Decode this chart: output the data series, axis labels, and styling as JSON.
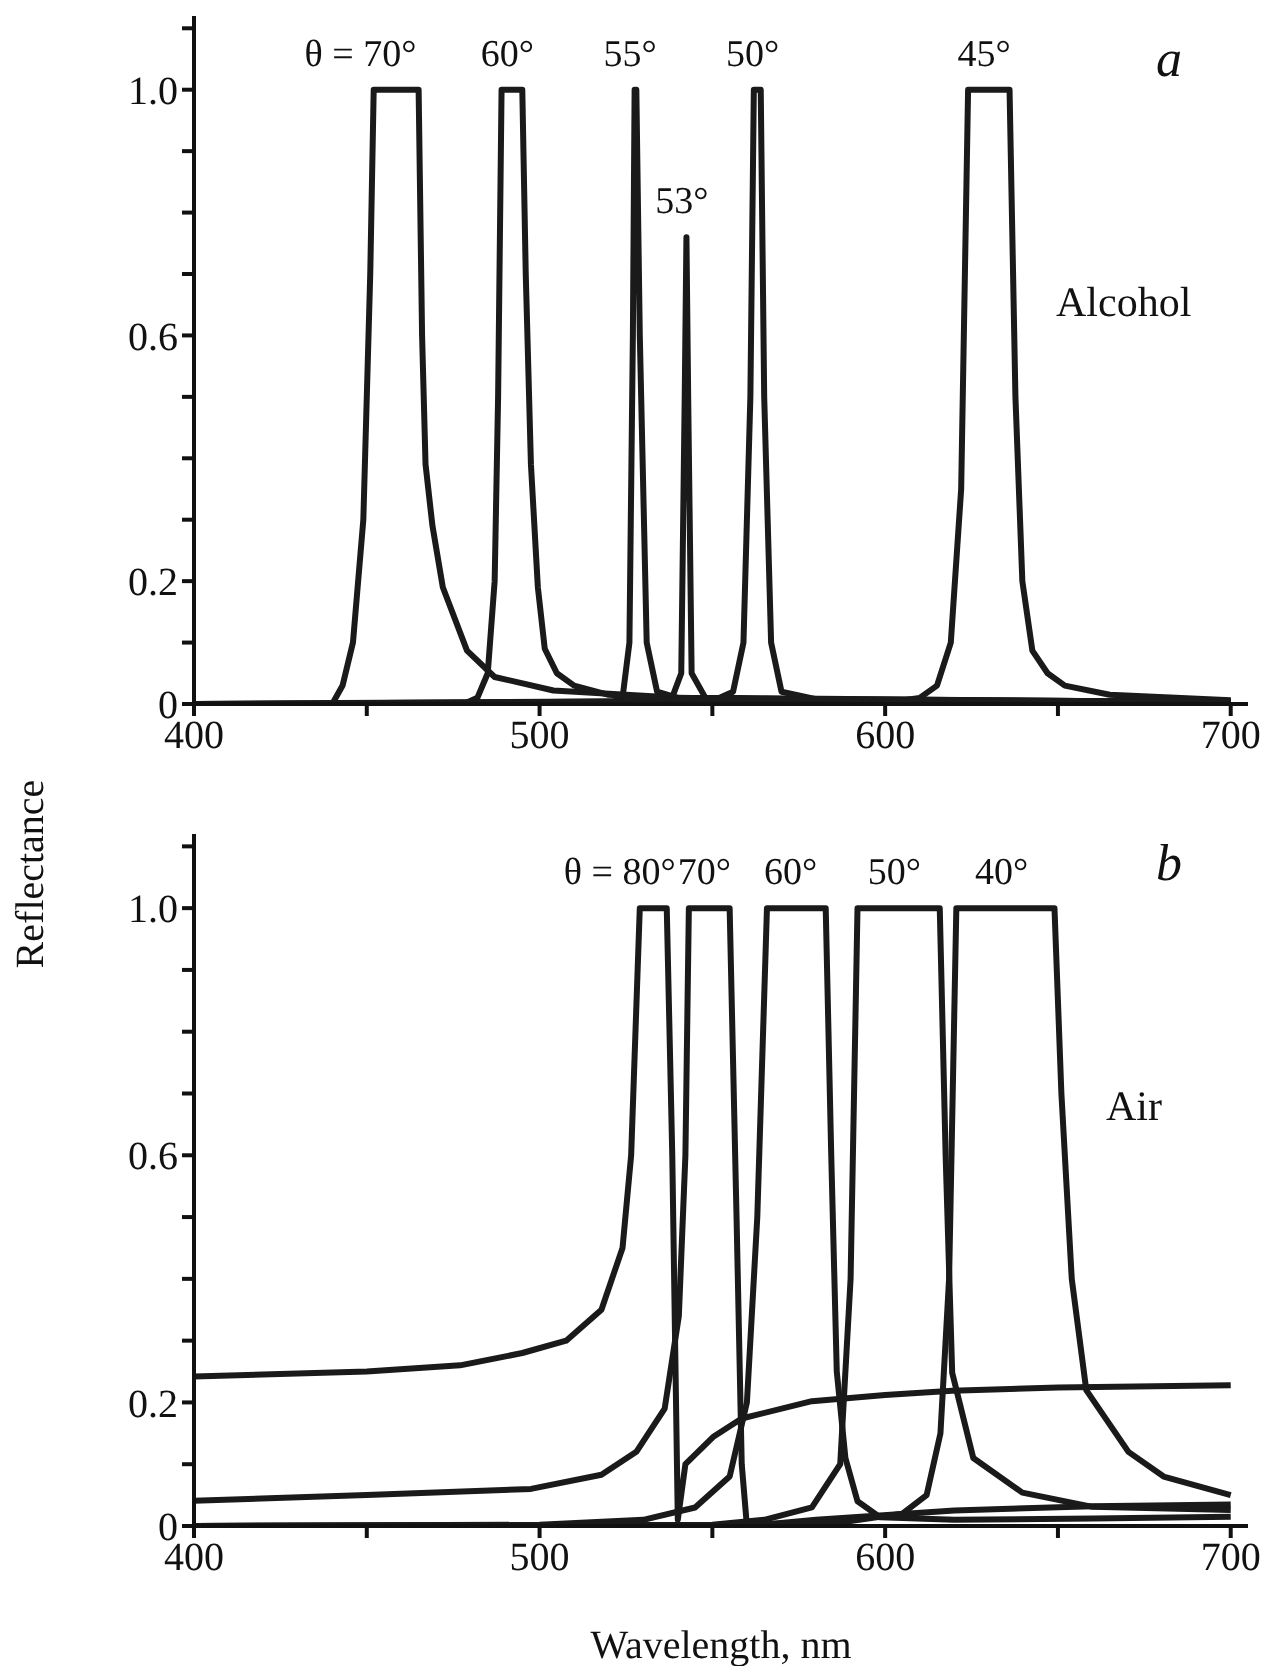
{
  "chart_data": [
    {
      "type": "line",
      "ylabel": "Reflectance",
      "xlim": [
        400,
        705
      ],
      "ylim": [
        0,
        1.12
      ],
      "xticks": [
        400,
        {
          "value": 450,
          "label": null
        },
        500,
        {
          "value": 550,
          "label": null
        },
        600,
        {
          "value": 650,
          "label": null
        },
        700
      ],
      "yticks": [
        0,
        {
          "value": 0.1,
          "label": null
        },
        0.2,
        {
          "value": 0.3,
          "label": null
        },
        {
          "value": 0.4,
          "label": null
        },
        {
          "value": 0.5,
          "label": null
        },
        0.6,
        {
          "value": 0.7,
          "label": null
        },
        {
          "value": 0.8,
          "label": null
        },
        {
          "value": 0.9,
          "label": null
        },
        {
          "value": 1,
          "label": "1.0"
        },
        {
          "value": 1.1,
          "label": null
        }
      ],
      "series": [
        {
          "color": "#1a1a1a",
          "x": [
            400,
            440,
            443,
            446,
            449,
            451,
            452,
            465,
            466,
            467,
            469,
            472,
            479,
            487,
            504,
            540,
            600,
            700
          ],
          "values": [
            0,
            0,
            0.03,
            0.1,
            0.3,
            0.7,
            1,
            1,
            0.6,
            0.39,
            0.29,
            0.19,
            0.087,
            0.044,
            0.022,
            0.01,
            0.006,
            0.004
          ]
        },
        {
          "color": "#1a1a1a",
          "x": [
            400,
            478,
            482,
            485,
            487,
            488,
            489,
            495,
            496,
            497.5,
            499.5,
            501.5,
            505,
            510,
            520,
            540,
            600,
            700
          ],
          "values": [
            0,
            0,
            0.01,
            0.05,
            0.2,
            0.5,
            1,
            1,
            0.7,
            0.39,
            0.19,
            0.09,
            0.05,
            0.03,
            0.015,
            0.008,
            0.005,
            0.004
          ]
        },
        {
          "color": "#1a1a1a",
          "x": [
            400,
            520,
            524,
            526,
            527,
            527.5,
            528,
            529,
            531,
            534,
            540,
            600,
            700
          ],
          "values": [
            0,
            0,
            0.01,
            0.1,
            0.6,
            1,
            1,
            0.6,
            0.1,
            0.02,
            0.01,
            0.005,
            0.004
          ]
        },
        {
          "color": "#1a1a1a",
          "x": [
            400,
            538,
            541,
            542,
            542.5,
            543,
            544,
            548,
            700
          ],
          "values": [
            0,
            0.005,
            0.05,
            0.5,
            0.76,
            0.5,
            0.05,
            0.01,
            0.003
          ]
        },
        {
          "color": "#1a1a1a",
          "x": [
            400,
            550,
            556,
            559,
            561,
            562,
            564,
            565,
            567,
            570,
            580,
            700
          ],
          "values": [
            0,
            0.005,
            0.02,
            0.1,
            0.5,
            1,
            1,
            0.5,
            0.1,
            0.02,
            0.008,
            0.003
          ]
        },
        {
          "color": "#1a1a1a",
          "x": [
            400,
            600,
            610,
            615,
            619,
            622,
            624,
            636,
            637.7,
            639.7,
            642.6,
            647,
            652,
            665,
            700
          ],
          "values": [
            0,
            0.002,
            0.01,
            0.03,
            0.1,
            0.35,
            1,
            1,
            0.5,
            0.2,
            0.087,
            0.05,
            0.03,
            0.015,
            0.006
          ]
        }
      ],
      "annotations": [
        "a",
        "Alcohol",
        {
          "text": "θ = 70°",
          "x": 458,
          "y": 1
        },
        {
          "text": "60°",
          "x": 492,
          "y": 1
        },
        {
          "text": "55°",
          "x": 527.5,
          "y": 1
        },
        {
          "text": "53°",
          "x": 542.5,
          "y": 0.76
        },
        {
          "text": "50°",
          "x": 563,
          "y": 1
        },
        {
          "text": "45°",
          "x": 630,
          "y": 1
        }
      ]
    },
    {
      "type": "line",
      "xlabel": "Wavelength, nm",
      "xlim": [
        400,
        705
      ],
      "ylim": [
        0,
        1.12
      ],
      "xticks": [
        400,
        {
          "value": 450,
          "label": null
        },
        500,
        {
          "value": 550,
          "label": null
        },
        600,
        {
          "value": 650,
          "label": null
        },
        700
      ],
      "yticks": [
        0,
        {
          "value": 0.1,
          "label": null
        },
        0.2,
        {
          "value": 0.3,
          "label": null
        },
        {
          "value": 0.4,
          "label": null
        },
        {
          "value": 0.5,
          "label": null
        },
        0.6,
        {
          "value": 0.7,
          "label": null
        },
        {
          "value": 0.8,
          "label": null
        },
        {
          "value": 0.9,
          "label": null
        },
        {
          "value": 1,
          "label": "1.0"
        },
        {
          "value": 1.1,
          "label": null
        }
      ],
      "series": [
        {
          "color": "#1a1a1a",
          "x": [
            400,
            450,
            477,
            495,
            507.7,
            517.9,
            524,
            526.5,
            529,
            536.8,
            538.4,
            540,
            542.2,
            550.4,
            558.5,
            578.8,
            600,
            619.4,
            650,
            700
          ],
          "values": [
            0.242,
            0.25,
            0.26,
            0.28,
            0.3,
            0.35,
            0.45,
            0.6,
            1,
            1,
            0.6,
            0.01,
            0.1,
            0.145,
            0.174,
            0.202,
            0.212,
            0.219,
            0.224,
            0.228
          ]
        },
        {
          "color": "#1a1a1a",
          "x": [
            400,
            450,
            497.5,
            517.9,
            528,
            536.2,
            540.3,
            542.2,
            543.2,
            555,
            557,
            558.5,
            560,
            580,
            620,
            660,
            700
          ],
          "values": [
            0.041,
            0.05,
            0.06,
            0.083,
            0.12,
            0.19,
            0.34,
            0.6,
            1,
            1,
            0.5,
            0.1,
            0,
            0.01,
            0.025,
            0.032,
            0.035
          ]
        },
        {
          "color": "#1a1a1a",
          "x": [
            400,
            500,
            530,
            545,
            555,
            560,
            563,
            565.8,
            582.8,
            584.4,
            586,
            588.5,
            592,
            598.6,
            620,
            660,
            700
          ],
          "values": [
            0,
            0.002,
            0.01,
            0.03,
            0.08,
            0.2,
            0.5,
            1,
            1,
            0.6,
            0.25,
            0.11,
            0.04,
            0.014,
            0.01,
            0.012,
            0.015
          ]
        },
        {
          "color": "#1a1a1a",
          "x": [
            400,
            550,
            565,
            578.8,
            587,
            590,
            592,
            615.8,
            617.5,
            619.4,
            625.5,
            639.7,
            660,
            700
          ],
          "values": [
            0,
            0.002,
            0.01,
            0.03,
            0.1,
            0.4,
            1,
            1,
            0.6,
            0.248,
            0.11,
            0.054,
            0.031,
            0.026
          ]
        },
        {
          "color": "#1a1a1a",
          "x": [
            400,
            560,
            590,
            605,
            612,
            616,
            618.5,
            620.6,
            649,
            651,
            654,
            658.2,
            670.4,
            680.6,
            700
          ],
          "values": [
            0,
            0.002,
            0.008,
            0.02,
            0.05,
            0.15,
            0.4,
            1,
            1,
            0.7,
            0.4,
            0.22,
            0.12,
            0.08,
            0.05
          ]
        }
      ],
      "annotations": [
        "b",
        "Air",
        {
          "text": "θ = 80°",
          "x": 533,
          "y": 1
        },
        {
          "text": "70°",
          "x": 549,
          "y": 1
        },
        {
          "text": "60°",
          "x": 574,
          "y": 1
        },
        {
          "text": "50°",
          "x": 604,
          "y": 1
        },
        {
          "text": "40°",
          "x": 635,
          "y": 1
        }
      ]
    }
  ]
}
